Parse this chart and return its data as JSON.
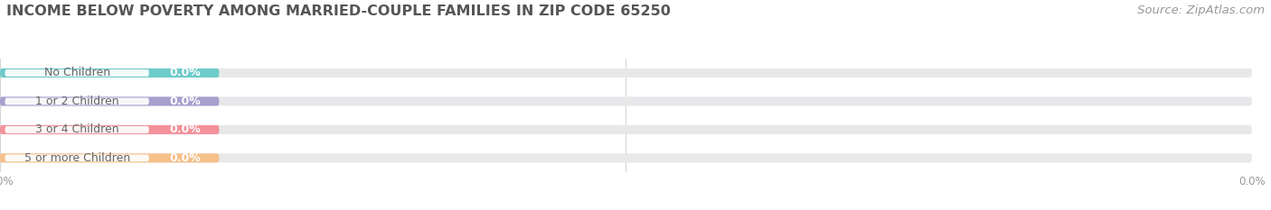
{
  "title": "INCOME BELOW POVERTY AMONG MARRIED-COUPLE FAMILIES IN ZIP CODE 65250",
  "source": "Source: ZipAtlas.com",
  "categories": [
    "No Children",
    "1 or 2 Children",
    "3 or 4 Children",
    "5 or more Children"
  ],
  "values": [
    0.0,
    0.0,
    0.0,
    0.0
  ],
  "bar_colors": [
    "#6dcbca",
    "#a89fce",
    "#f4919b",
    "#f5c08a"
  ],
  "bar_bg_color": "#e8e8ea",
  "background_color": "#ffffff",
  "title_fontsize": 11.5,
  "source_fontsize": 9.5,
  "bar_label_fontsize": 9,
  "value_label_fontsize": 9,
  "bar_height": 0.32,
  "fig_width": 14.06,
  "fig_height": 2.33
}
